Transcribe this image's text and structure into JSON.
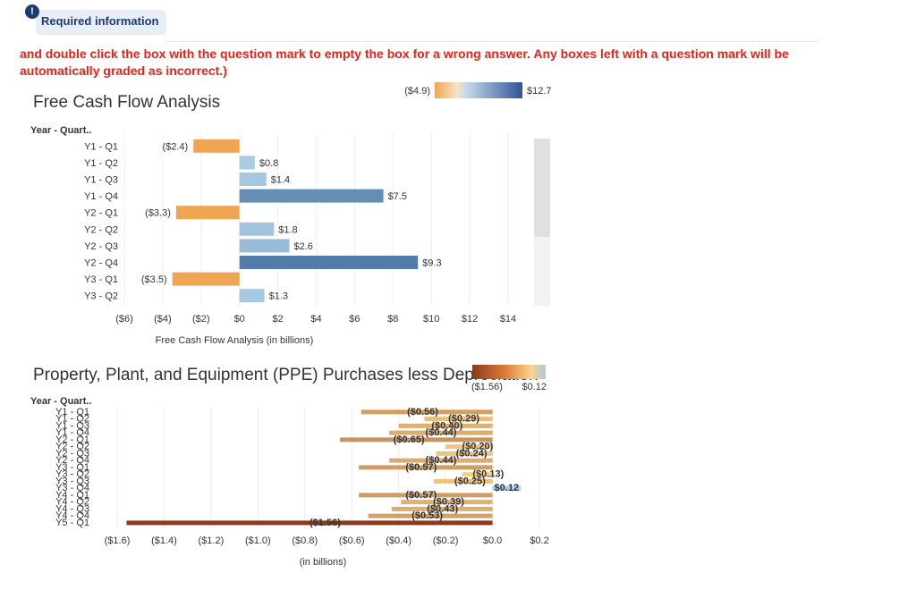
{
  "header": {
    "badge_icon": "!",
    "badge_label": "Required information",
    "instruction": "and double click the box with the question mark to empty the box for a wrong answer. Any boxes left with a question mark will be automatically graded as incorrect.)"
  },
  "colors": {
    "positive_dark": "#4e79a7",
    "positive_light": "#a9cbe3",
    "negative": "#f0a554",
    "ppe_neg_light": "#f7d58c",
    "ppe_neg_dark": "#8b3a1b",
    "ppe_pos": "#a9cbe3"
  },
  "chart_data": [
    {
      "type": "bar",
      "orientation": "horizontal",
      "title": "Free Cash Flow Analysis",
      "row_header": "Year - Quart..",
      "xlabel": "Free Cash Flow Analysis (in billions)",
      "legend_min": "($4.9)",
      "legend_max": "$12.7",
      "color_domain": [
        -4.9,
        12.7
      ],
      "categories": [
        "Y1 - Q1",
        "Y1 - Q2",
        "Y1 - Q3",
        "Y1 - Q4",
        "Y2 - Q1",
        "Y2 - Q2",
        "Y2 - Q3",
        "Y2 - Q4",
        "Y3 - Q1",
        "Y3 - Q2"
      ],
      "values": [
        -2.4,
        0.8,
        1.4,
        7.5,
        -3.3,
        1.8,
        2.6,
        9.3,
        -3.5,
        1.3
      ],
      "value_labels": [
        "($2.4)",
        "$0.8",
        "$1.4",
        "$7.5",
        "($3.3)",
        "$1.8",
        "$2.6",
        "$9.3",
        "($3.5)",
        "$1.3"
      ],
      "xlim": [
        -6,
        14
      ],
      "xticks": [
        -6,
        -4,
        -2,
        0,
        2,
        4,
        6,
        8,
        10,
        12,
        14
      ],
      "xtick_labels": [
        "($6)",
        "($4)",
        "($2)",
        "$0",
        "$2",
        "$4",
        "$6",
        "$8",
        "$10",
        "$12",
        "$14"
      ]
    },
    {
      "type": "bar",
      "orientation": "horizontal",
      "title": "Property, Plant, and Equipment (PPE) Purchases less Depreciation",
      "row_header": "Year - Quart..",
      "xlabel": "(in billions)",
      "legend_min": "($1.56)",
      "legend_max": "$0.12",
      "color_domain": [
        -1.56,
        0.12
      ],
      "categories": [
        "Y1 - Q1",
        "Y1 - Q2",
        "Y1 - Q3",
        "Y1 - Q4",
        "Y2 - Q1",
        "Y2 - Q2",
        "Y2 - Q3",
        "Y2 - Q4",
        "Y3 - Q1",
        "Y3 - Q2",
        "Y3 - Q3",
        "Y3 - Q4",
        "Y4 - Q1",
        "Y4 - Q2",
        "Y4 - Q3",
        "Y4 - Q4",
        "Y5 - Q1"
      ],
      "values": [
        -0.56,
        -0.29,
        -0.4,
        -0.44,
        -0.65,
        -0.2,
        -0.24,
        -0.44,
        -0.57,
        -0.13,
        -0.25,
        0.12,
        -0.57,
        -0.39,
        -0.43,
        -0.53,
        -1.56
      ],
      "value_labels": [
        "($0.56)",
        "($0.29)",
        "($0.40)",
        "($0.44)",
        "($0.65)",
        "($0.20)",
        "($0.24)",
        "($0.44)",
        "($0.57)",
        "($0.13)",
        "($0.25)",
        "$0.12",
        "($0.57)",
        "($0.39)",
        "($0.43)",
        "($0.53)",
        "($1.56)"
      ],
      "xlim": [
        -1.6,
        0.2
      ],
      "xticks": [
        -1.6,
        -1.4,
        -1.2,
        -1.0,
        -0.8,
        -0.6,
        -0.4,
        -0.2,
        0.0,
        0.2
      ],
      "xtick_labels": [
        "($1.6)",
        "($1.4)",
        "($1.2)",
        "($1.0)",
        "($0.8)",
        "($0.6)",
        "($0.4)",
        "($0.2)",
        "$0.0",
        "$0.2"
      ]
    }
  ]
}
